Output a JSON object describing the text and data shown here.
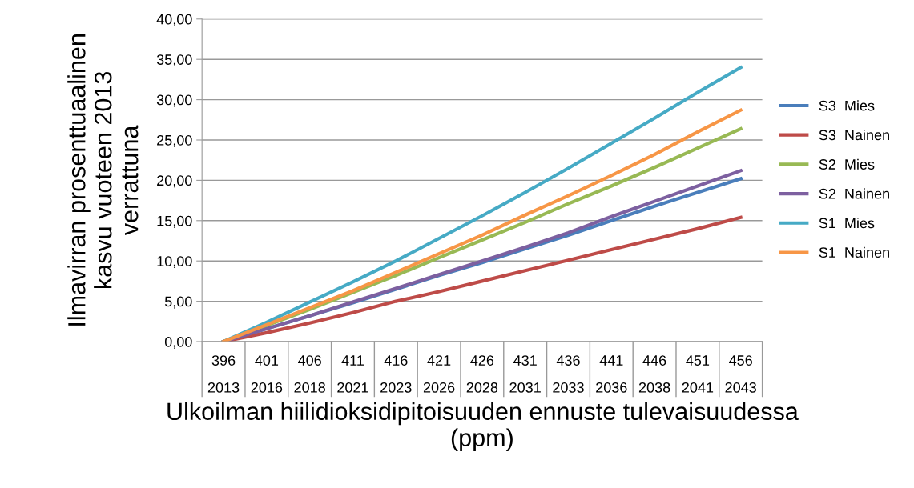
{
  "chart_data": {
    "type": "line",
    "categories": [
      "396\n2013",
      "401\n2016",
      "406\n2018",
      "411\n2021",
      "416\n2023",
      "421\n2026",
      "426\n2028",
      "431\n2031",
      "436\n2033",
      "441\n2036",
      "446\n2038",
      "451\n2041",
      "456\n2043"
    ],
    "xlabel": "Ulkoilman hiilidioksidipitoisuuden ennuste tulevaisuudessa\n(ppm)",
    "ylabel": "Ilmavirran prosenttuaalinen\nkasvu vuoteen 2013\nverrattuna",
    "ylim": [
      0,
      40
    ],
    "yticks": [
      {
        "value": 0,
        "label": "0,00"
      },
      {
        "value": 5,
        "label": "5,00"
      },
      {
        "value": 10,
        "label": "10,00"
      },
      {
        "value": 15,
        "label": "15,00"
      },
      {
        "value": 20,
        "label": "20,00"
      },
      {
        "value": 25,
        "label": "25,00"
      },
      {
        "value": 30,
        "label": "30,00"
      },
      {
        "value": 35,
        "label": "35,00"
      },
      {
        "value": 40,
        "label": "40,00"
      }
    ],
    "grid": "y",
    "legend": "right",
    "marker": "none",
    "line_style": "solid",
    "series": [
      {
        "name": "S3  Mies",
        "color": "#4a7ebb",
        "values": [
          0,
          1.6,
          3.2,
          4.8,
          6.5,
          8.2,
          9.8,
          11.5,
          13.2,
          15.0,
          16.8,
          18.5,
          20.2
        ]
      },
      {
        "name": "S3  Nainen",
        "color": "#be4b48",
        "values": [
          0,
          1.1,
          2.3,
          3.6,
          5.0,
          6.2,
          7.5,
          8.8,
          10.1,
          11.4,
          12.7,
          14.0,
          15.4
        ]
      },
      {
        "name": "S2  Mies",
        "color": "#98b954",
        "values": [
          0,
          2.0,
          4.0,
          6.1,
          8.2,
          10.4,
          12.6,
          14.8,
          17.1,
          19.3,
          21.6,
          24.0,
          26.4
        ]
      },
      {
        "name": "S2  Nainen",
        "color": "#7d60a0",
        "values": [
          0,
          1.6,
          3.2,
          4.9,
          6.6,
          8.3,
          10.0,
          11.7,
          13.5,
          15.5,
          17.4,
          19.3,
          21.2
        ]
      },
      {
        "name": "S1  Mies",
        "color": "#46aac5",
        "values": [
          0,
          2.4,
          4.9,
          7.4,
          10.0,
          12.8,
          15.6,
          18.5,
          21.5,
          24.6,
          27.7,
          30.9,
          34.0
        ]
      },
      {
        "name": "S1  Nainen",
        "color": "#f79646",
        "values": [
          0,
          2.1,
          4.2,
          6.3,
          8.6,
          10.9,
          13.2,
          15.7,
          18.1,
          20.6,
          23.2,
          26.0,
          28.7
        ]
      }
    ]
  }
}
